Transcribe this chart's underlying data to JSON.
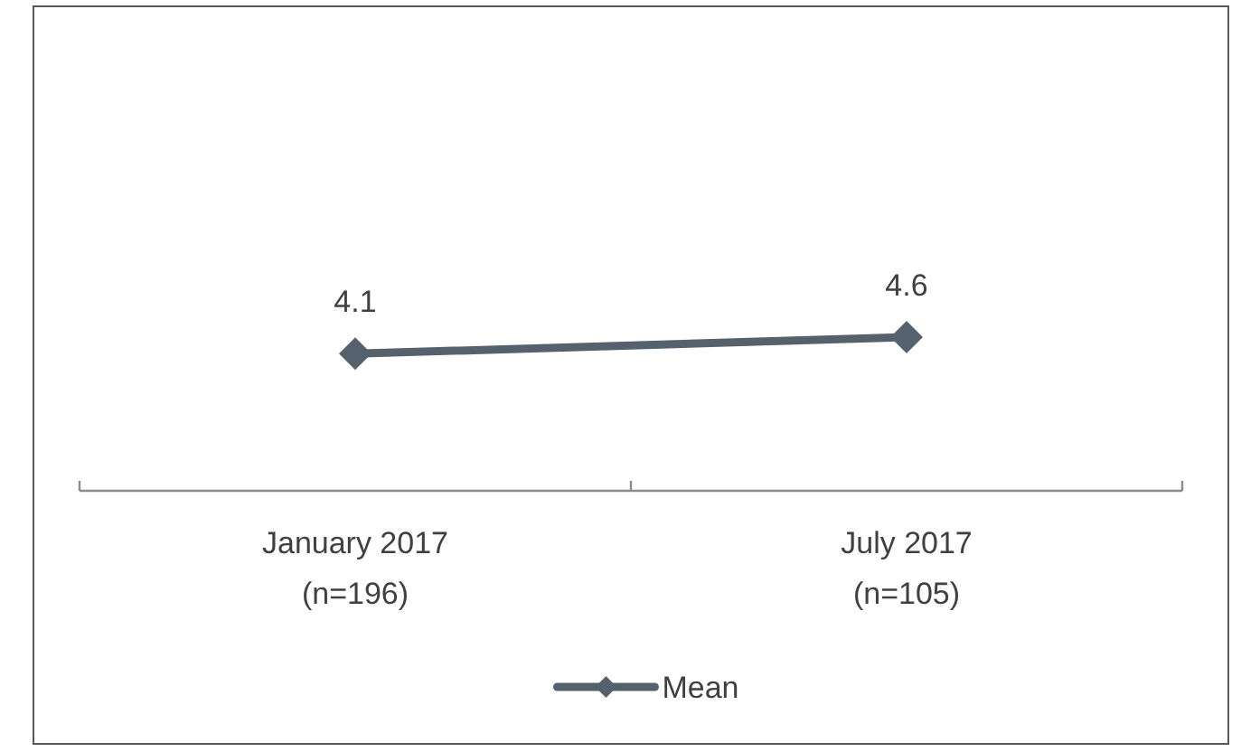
{
  "chart_data": {
    "type": "line",
    "categories": [
      "January 2017\n(n=196)",
      "July 2017\n(n=105)"
    ],
    "series": [
      {
        "name": "Mean",
        "color": "#55616c",
        "values": [
          4.1,
          4.6
        ]
      }
    ],
    "data_labels": true,
    "marker": "diamond",
    "line_style": "solid",
    "legend": "bottom"
  }
}
